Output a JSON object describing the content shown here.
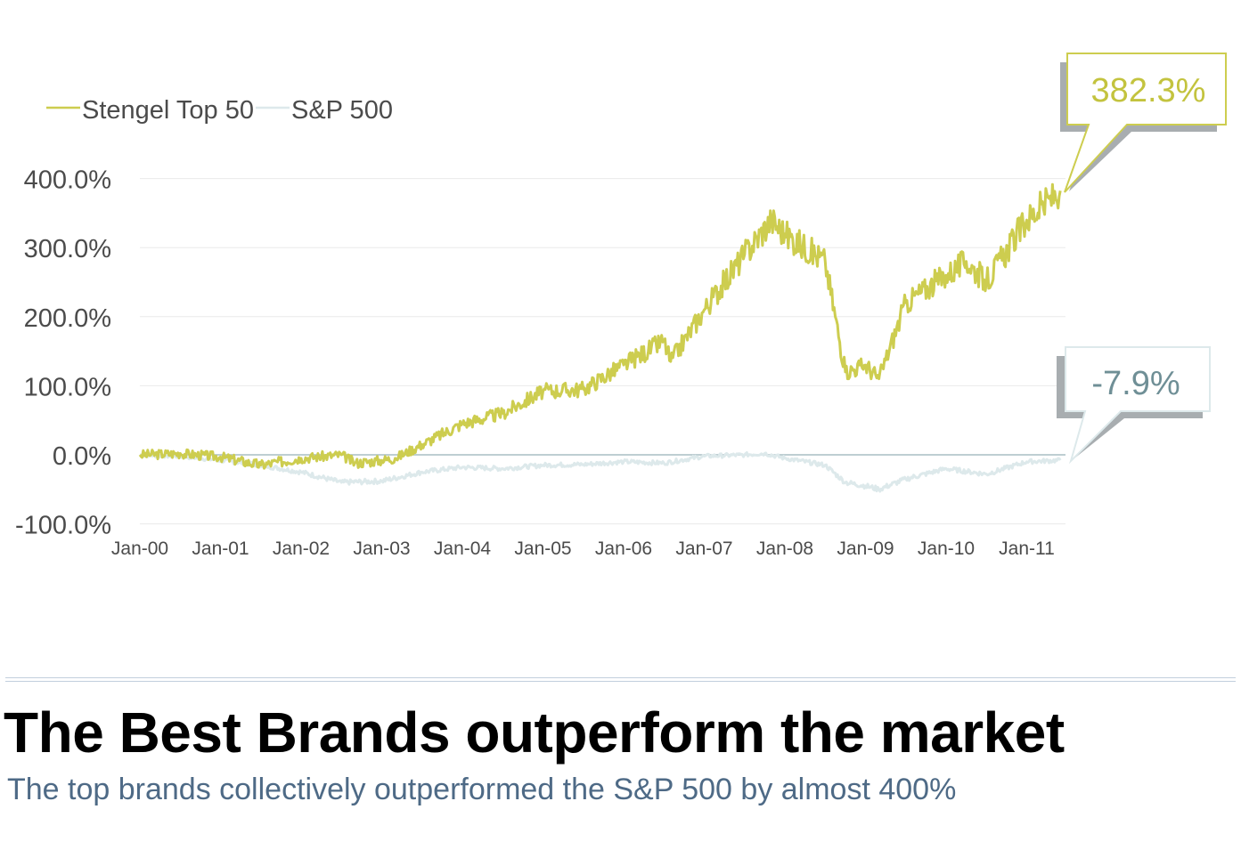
{
  "chart_data": {
    "type": "line",
    "x_start": "Jan-00",
    "x_end": "Jun-11",
    "x_tick_labels": [
      "Jan-00",
      "Jan-01",
      "Jan-02",
      "Jan-03",
      "Jan-04",
      "Jan-05",
      "Jan-06",
      "Jan-07",
      "Jan-08",
      "Jan-09",
      "Jan-10",
      "Jan-11"
    ],
    "y_tick_labels": [
      "400.0%",
      "300.0%",
      "200.0%",
      "100.0%",
      "0.0%",
      "-100.0%"
    ],
    "ylim": [
      -100,
      400
    ],
    "grid": true,
    "legend_position": "top-left",
    "series": [
      {
        "name": "Stengel Top 50",
        "color": "#cdcd4f",
        "x": [
          "Jan-00",
          "Jul-00",
          "Jan-01",
          "Jul-01",
          "Jan-02",
          "Jul-02",
          "Sep-02",
          "Jan-03",
          "Mar-03",
          "Jul-03",
          "Jan-04",
          "Jul-04",
          "Jan-05",
          "Jul-05",
          "Jan-06",
          "Jul-06",
          "Aug-06",
          "Jan-07",
          "Jul-07",
          "Nov-07",
          "Jan-08",
          "Jul-08",
          "Oct-08",
          "Jan-09",
          "Mar-09",
          "Jul-09",
          "Jan-10",
          "Apr-10",
          "Jul-10",
          "Jan-11",
          "Jun-11"
        ],
        "values": [
          0,
          2,
          -3,
          -15,
          -5,
          0,
          -12,
          -8,
          -5,
          15,
          45,
          60,
          92,
          95,
          130,
          165,
          135,
          210,
          290,
          340,
          320,
          280,
          120,
          130,
          110,
          220,
          260,
          280,
          250,
          340,
          382.3
        ]
      },
      {
        "name": "S&P 500",
        "color": "#dde9eb",
        "x": [
          "Jan-00",
          "Jul-00",
          "Jan-01",
          "Jul-01",
          "Jan-02",
          "Jul-02",
          "Jan-03",
          "Jul-03",
          "Jan-04",
          "Jul-04",
          "Jan-05",
          "Jul-05",
          "Jan-06",
          "Jul-06",
          "Jan-07",
          "Jul-07",
          "Oct-07",
          "Jan-08",
          "Jul-08",
          "Oct-08",
          "Jan-09",
          "Mar-09",
          "Jul-09",
          "Jan-10",
          "Jul-10",
          "Jan-11",
          "Jun-11"
        ],
        "values": [
          0,
          -2,
          -8,
          -15,
          -25,
          -40,
          -38,
          -25,
          -18,
          -20,
          -15,
          -14,
          -10,
          -12,
          -2,
          0,
          2,
          -5,
          -15,
          -40,
          -45,
          -50,
          -35,
          -20,
          -28,
          -10,
          -7.9
        ]
      }
    ],
    "callouts": [
      "382.3%",
      "-7.9%"
    ]
  },
  "headline": "The Best Brands outperform the market",
  "subhead": "The top brands collectively outperformed the S&P 500 by almost 400%"
}
